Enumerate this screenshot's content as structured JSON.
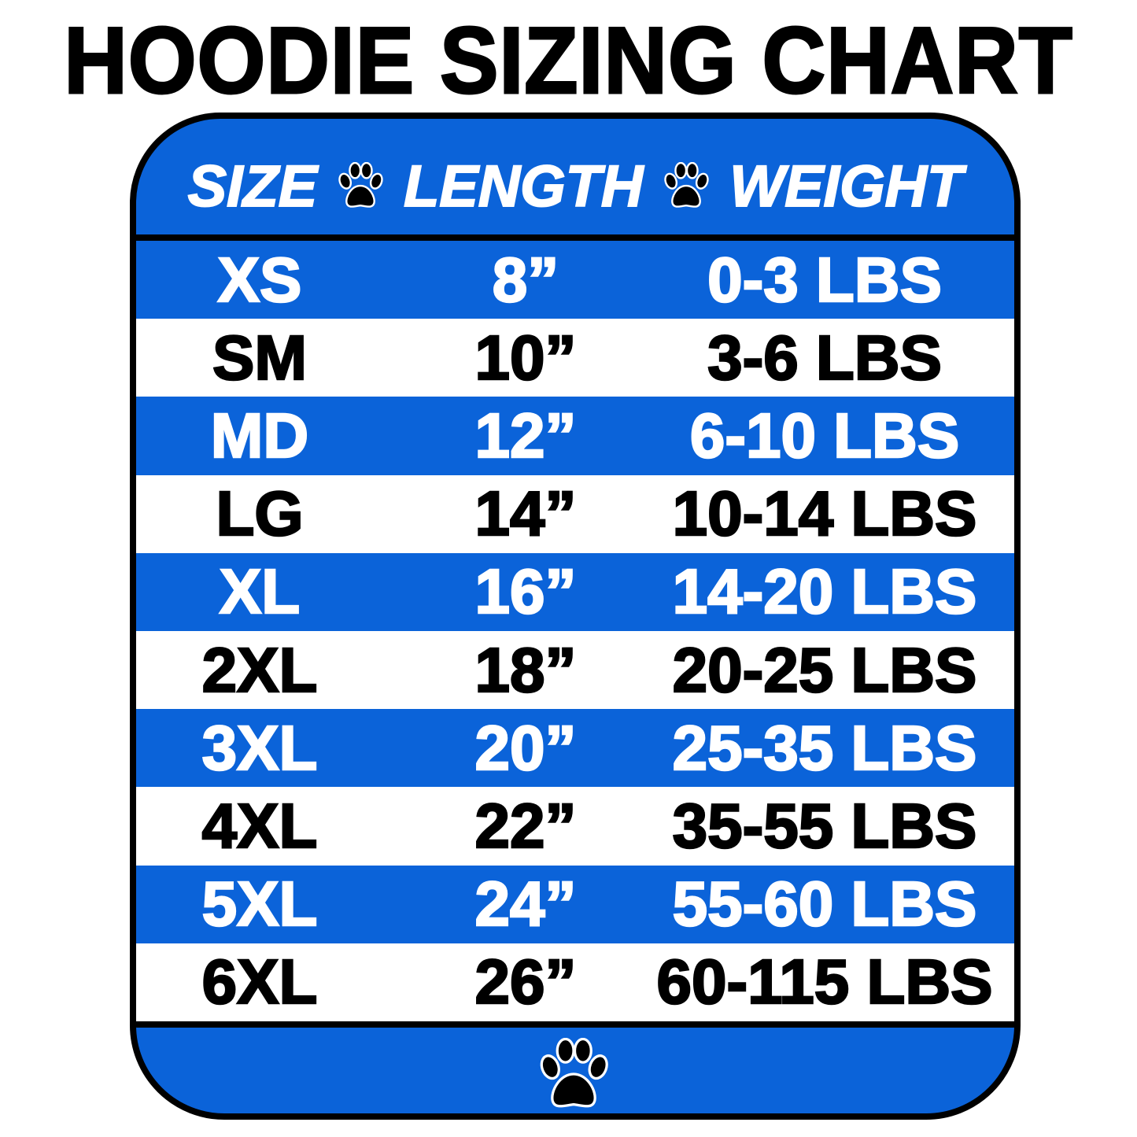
{
  "title": "HOODIE SIZING CHART",
  "header": {
    "size": "SIZE",
    "length": "LENGTH",
    "weight": "WEIGHT",
    "separator_icon": "paw-icon"
  },
  "colors": {
    "blue": "#0b63d9",
    "white": "#ffffff",
    "black": "#000000"
  },
  "rows": [
    {
      "size": "XS",
      "length": "8”",
      "weight": "0-3 LBS"
    },
    {
      "size": "SM",
      "length": "10”",
      "weight": "3-6 LBS"
    },
    {
      "size": "MD",
      "length": "12”",
      "weight": "6-10 LBS"
    },
    {
      "size": "LG",
      "length": "14”",
      "weight": "10-14 LBS"
    },
    {
      "size": "XL",
      "length": "16”",
      "weight": "14-20 LBS"
    },
    {
      "size": "2XL",
      "length": "18”",
      "weight": "20-25 LBS"
    },
    {
      "size": "3XL",
      "length": "20”",
      "weight": "25-35 LBS"
    },
    {
      "size": "4XL",
      "length": "22”",
      "weight": "35-55 LBS"
    },
    {
      "size": "5XL",
      "length": "24”",
      "weight": "55-60 LBS"
    },
    {
      "size": "6XL",
      "length": "26”",
      "weight": "60-115 LBS"
    }
  ],
  "footer_icon": "paw-icon"
}
